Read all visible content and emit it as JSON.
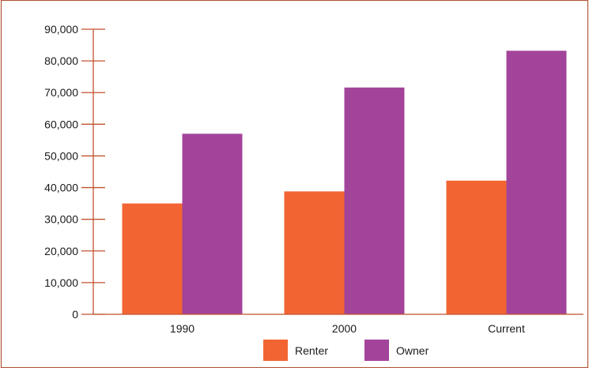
{
  "chart_data": {
    "type": "bar",
    "categories": [
      "1990",
      "2000",
      "Current"
    ],
    "series": [
      {
        "name": "Renter",
        "values": [
          35000,
          38800,
          42200
        ],
        "color": "#f26532"
      },
      {
        "name": "Owner",
        "values": [
          57000,
          71600,
          83200
        ],
        "color": "#a3449b"
      }
    ],
    "title": "",
    "xlabel": "",
    "ylabel": "",
    "ylim": [
      0,
      90000
    ],
    "yticks": [
      "0",
      "10,000",
      "20,000",
      "30,000",
      "40,000",
      "50,000",
      "60,000",
      "70,000",
      "80,000",
      "90,000"
    ],
    "grid": false,
    "legend": "bottom",
    "axis_color": "#c0522f",
    "frame_color": "#b4573a"
  }
}
